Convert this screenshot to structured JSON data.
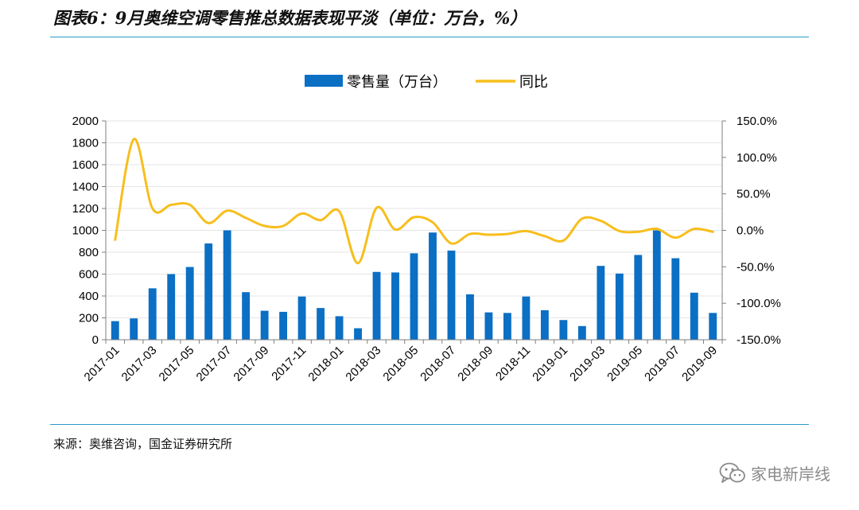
{
  "header": {
    "title": "图表6：9月奥维空调零售推总数据表现平淡（单位：万台，%）"
  },
  "footer": {
    "source": "来源：奥维咨询，国金证券研究所",
    "watermark": "家电新岸线"
  },
  "colors": {
    "bar": "#0b6fc4",
    "line": "#f7be1d",
    "rule": "#2a9bc8"
  },
  "icons": {
    "watermark": "wechat-icon"
  },
  "chart_data": {
    "type": "bar",
    "categories": [
      "2017-01",
      "2017-02",
      "2017-03",
      "2017-04",
      "2017-05",
      "2017-06",
      "2017-07",
      "2017-08",
      "2017-09",
      "2017-10",
      "2017-11",
      "2017-12",
      "2018-01",
      "2018-02",
      "2018-03",
      "2018-04",
      "2018-05",
      "2018-06",
      "2018-07",
      "2018-08",
      "2018-09",
      "2018-10",
      "2018-11",
      "2018-12",
      "2019-01",
      "2019-02",
      "2019-03",
      "2019-04",
      "2019-05",
      "2019-06",
      "2019-07",
      "2019-08",
      "2019-09"
    ],
    "x_tick_labels": [
      "2017-01",
      "2017-03",
      "2017-05",
      "2017-07",
      "2017-09",
      "2017-11",
      "2018-01",
      "2018-03",
      "2018-05",
      "2018-07",
      "2018-09",
      "2018-11",
      "2019-01",
      "2019-03",
      "2019-05",
      "2019-07",
      "2019-09"
    ],
    "series": [
      {
        "name": "零售量（万台）",
        "type": "bar",
        "axis": "left",
        "values": [
          170,
          195,
          470,
          600,
          665,
          880,
          1000,
          435,
          265,
          255,
          395,
          290,
          215,
          105,
          620,
          615,
          790,
          980,
          815,
          415,
          250,
          245,
          395,
          270,
          180,
          125,
          675,
          605,
          775,
          1000,
          745,
          430,
          245
        ]
      },
      {
        "name": "同比",
        "type": "line",
        "axis": "right",
        "values": [
          -13,
          125,
          30,
          35,
          35,
          10,
          27,
          17,
          6,
          6,
          23,
          14,
          26,
          -45,
          31,
          1,
          18,
          11,
          -18,
          -5,
          -6,
          -5,
          -1,
          -8,
          -14,
          16,
          13,
          -1,
          -2,
          2,
          -10,
          2,
          -2
        ]
      }
    ],
    "y_left": {
      "range": [
        0,
        2000
      ],
      "ticks": [
        0,
        200,
        400,
        600,
        800,
        1000,
        1200,
        1400,
        1600,
        1800,
        2000
      ],
      "tick_labels": [
        "0",
        "200",
        "400",
        "600",
        "800",
        "1000",
        "1200",
        "1400",
        "1600",
        "1800",
        "2000"
      ]
    },
    "y_right": {
      "range": [
        -150,
        150
      ],
      "ticks": [
        -150,
        -100,
        -50,
        0,
        50,
        100,
        150
      ],
      "tick_labels": [
        "-150.0%",
        "-100.0%",
        "-50.0%",
        "0.0%",
        "50.0%",
        "100.0%",
        "150.0%"
      ]
    },
    "grid": true,
    "legend_position": "top-center"
  }
}
